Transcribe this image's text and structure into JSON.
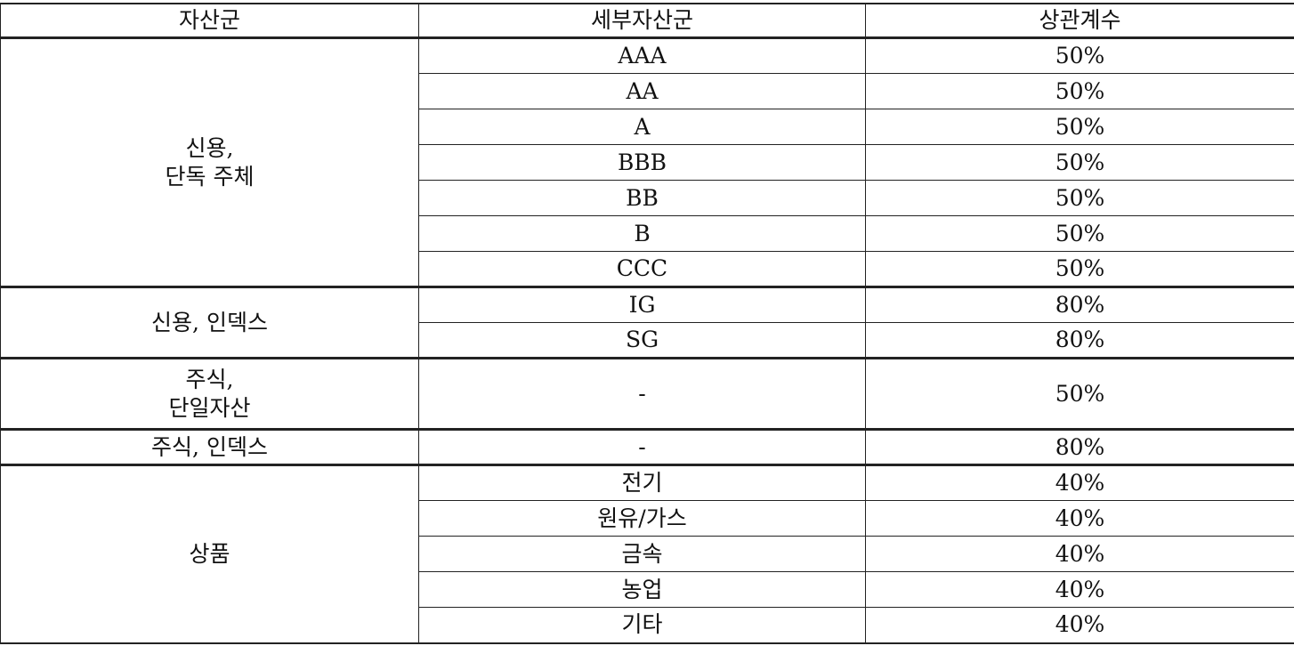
{
  "table": {
    "headers": [
      "자산군",
      "세부자산군",
      "상관계수"
    ],
    "groups": [
      {
        "label": "신용,\n단독 주체",
        "rows": [
          {
            "sub": "AAA",
            "coef": "50%"
          },
          {
            "sub": "AA",
            "coef": "50%"
          },
          {
            "sub": "A",
            "coef": "50%"
          },
          {
            "sub": "BBB",
            "coef": "50%"
          },
          {
            "sub": "BB",
            "coef": "50%"
          },
          {
            "sub": "B",
            "coef": "50%"
          },
          {
            "sub": "CCC",
            "coef": "50%"
          }
        ]
      },
      {
        "label": "신용, 인덱스",
        "rows": [
          {
            "sub": "IG",
            "coef": "80%"
          },
          {
            "sub": "SG",
            "coef": "80%"
          }
        ]
      },
      {
        "label": "주식,\n단일자산",
        "rows": [
          {
            "sub": "-",
            "coef": "50%"
          }
        ]
      },
      {
        "label": "주식, 인덱스",
        "rows": [
          {
            "sub": "-",
            "coef": "80%"
          }
        ]
      },
      {
        "label": "상품",
        "rows": [
          {
            "sub": "전기",
            "coef": "40%"
          },
          {
            "sub": "원유/가스",
            "coef": "40%"
          },
          {
            "sub": "금속",
            "coef": "40%"
          },
          {
            "sub": "농업",
            "coef": "40%"
          },
          {
            "sub": "기타",
            "coef": "40%"
          }
        ]
      }
    ]
  }
}
